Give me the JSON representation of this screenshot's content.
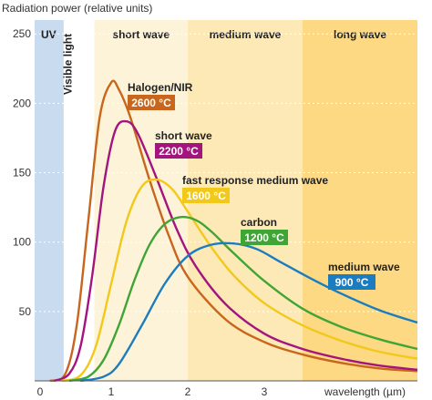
{
  "chart_data": {
    "type": "line",
    "title": "",
    "ylabel": "Radiation power (relative units)",
    "xlabel": "wavelength (µm)",
    "xlim": [
      0,
      5.0
    ],
    "ylim": [
      0,
      260
    ],
    "x_ticks": [
      "0",
      "1",
      "2",
      "3"
    ],
    "y_ticks": [
      "50",
      "100",
      "150",
      "200",
      "250"
    ],
    "y_tick_values": [
      50,
      100,
      150,
      200,
      250
    ],
    "bands": [
      {
        "label": "UV",
        "from": 0.0,
        "to": 0.38,
        "color": "#c9dcef"
      },
      {
        "label": "Visible light",
        "from": 0.38,
        "to": 0.78,
        "color": "#ffffff"
      },
      {
        "label": "short wave",
        "from": 0.78,
        "to": 2.0,
        "color": "#fdf3d8"
      },
      {
        "label": "medium wave",
        "from": 2.0,
        "to": 3.5,
        "color": "#fde9b6"
      },
      {
        "label": "long wave",
        "from": 3.5,
        "to": 5.0,
        "color": "#fcd982"
      }
    ],
    "series": [
      {
        "name": "Halogen/NIR",
        "temp": "2600 °C",
        "color": "#c7661c",
        "x": [
          0.2,
          0.4,
          0.55,
          0.7,
          0.85,
          1.0,
          1.1,
          1.25,
          1.5,
          1.75,
          2.0,
          2.5,
          3.0,
          3.5,
          4.0,
          4.5,
          5.0
        ],
        "y": [
          0,
          5,
          40,
          115,
          190,
          215,
          210,
          190,
          145,
          105,
          75,
          44,
          28,
          19,
          13,
          9,
          7
        ]
      },
      {
        "name": "short wave",
        "temp": "2200 °C",
        "color": "#a3147f",
        "x": [
          0.25,
          0.45,
          0.6,
          0.75,
          0.9,
          1.05,
          1.2,
          1.35,
          1.6,
          1.85,
          2.1,
          2.5,
          3.0,
          3.5,
          4.0,
          4.5,
          5.0
        ],
        "y": [
          0,
          5,
          25,
          75,
          140,
          180,
          187,
          178,
          145,
          110,
          83,
          55,
          34,
          23,
          16,
          11,
          8
        ]
      },
      {
        "name": "fast response medium wave",
        "temp": "1600 °C",
        "color": "#f2c81a",
        "x": [
          0.35,
          0.6,
          0.8,
          1.0,
          1.2,
          1.4,
          1.6,
          1.8,
          2.0,
          2.3,
          2.6,
          3.0,
          3.5,
          4.0,
          4.5,
          5.0
        ],
        "y": [
          0,
          4,
          25,
          70,
          115,
          140,
          145,
          138,
          122,
          97,
          76,
          56,
          40,
          29,
          21,
          16
        ]
      },
      {
        "name": "carbon",
        "temp": "1200 °C",
        "color": "#3fa535",
        "x": [
          0.45,
          0.7,
          0.9,
          1.1,
          1.3,
          1.5,
          1.7,
          1.9,
          2.1,
          2.3,
          2.6,
          3.0,
          3.5,
          4.0,
          4.5,
          5.0
        ],
        "y": [
          0,
          3,
          15,
          40,
          72,
          98,
          113,
          118,
          116,
          108,
          92,
          72,
          52,
          39,
          30,
          23
        ]
      },
      {
        "name": "medium wave",
        "temp": "900 °C",
        "color": "#1b7dc0",
        "x": [
          0.6,
          0.9,
          1.1,
          1.4,
          1.7,
          2.0,
          2.3,
          2.6,
          2.9,
          3.2,
          3.6,
          4.0,
          4.5,
          5.0
        ],
        "y": [
          0,
          3,
          12,
          40,
          70,
          90,
          98,
          99,
          95,
          86,
          74,
          63,
          51,
          42
        ]
      }
    ],
    "grid": true,
    "legend": "inline labels"
  }
}
